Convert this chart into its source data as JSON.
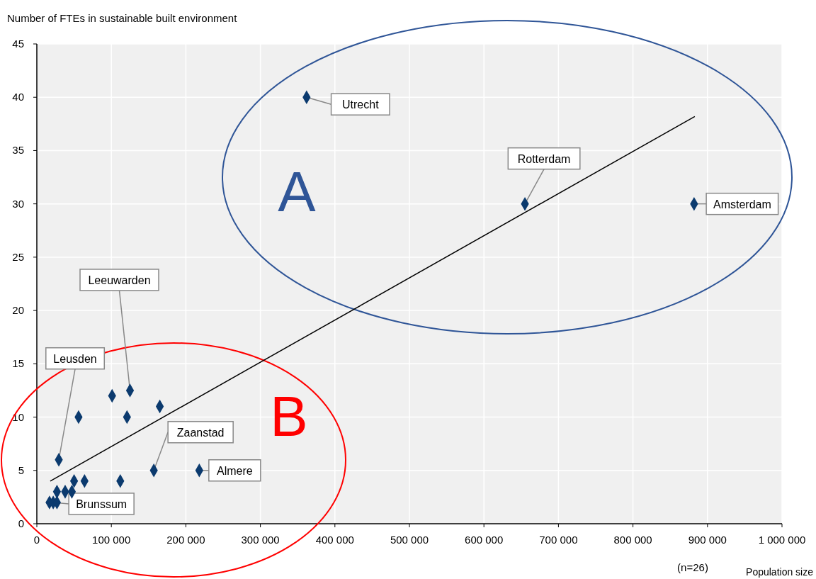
{
  "chart_data": {
    "type": "scatter",
    "ylabel": "Number of FTEs in sustainable built environment",
    "xlabel": "Population size",
    "xlim": [
      0,
      1000000
    ],
    "xticks": [
      0,
      {
        "value": 100000,
        "label": "100 000"
      },
      {
        "value": 200000,
        "label": "200 000"
      },
      {
        "value": 300000,
        "label": "300 000"
      },
      {
        "value": 400000,
        "label": "400 000"
      },
      {
        "value": 500000,
        "label": "500 000"
      },
      {
        "value": 600000,
        "label": "600 000"
      },
      {
        "value": 700000,
        "label": "700 000"
      },
      {
        "value": 800000,
        "label": "800 000"
      },
      {
        "value": 900000,
        "label": "900 000"
      },
      {
        "value": 1000000,
        "label": "1 000 000"
      }
    ],
    "ylim": [
      0,
      45
    ],
    "yticks": [
      0,
      5,
      10,
      15,
      20,
      25,
      30,
      35,
      40,
      45
    ],
    "grid": true,
    "marker": "diamond",
    "series": [
      {
        "color": "#0b3a6e",
        "x": [
          17000,
          22000,
          27000,
          27000,
          38000,
          47000,
          29500,
          50000,
          64000,
          112000,
          56000,
          101000,
          125000,
          121000,
          165000,
          157000,
          218000,
          362000,
          655000,
          882000
        ],
        "values": [
          2,
          2,
          2,
          3,
          3,
          3,
          6,
          4,
          4,
          4,
          10,
          12,
          12.5,
          10,
          11,
          5,
          5,
          40,
          30,
          30
        ]
      },
      {
        "type": "line",
        "color": "#000000",
        "x": [
          18000,
          883000
        ],
        "values": [
          4,
          38.2
        ],
        "line_style": "solid",
        "marker": "none"
      }
    ],
    "annotations": [
      {
        "text": "Utrecht",
        "x": 362000,
        "y": 40
      },
      {
        "text": "Rotterdam",
        "x": 655000,
        "y": 30
      },
      {
        "text": "Amsterdam",
        "x": 882000,
        "y": 30
      },
      {
        "text": "Leeuwarden",
        "x": 125000,
        "y": 12.5
      },
      {
        "text": "Leusden",
        "x": 29500,
        "y": 6
      },
      {
        "text": "Zaanstad",
        "x": 157000,
        "y": 5
      },
      {
        "text": "Almere",
        "x": 218000,
        "y": 5
      },
      {
        "text": "Brunssum",
        "x": 22000,
        "y": 2
      },
      "A",
      "B",
      "(n=26)"
    ]
  }
}
